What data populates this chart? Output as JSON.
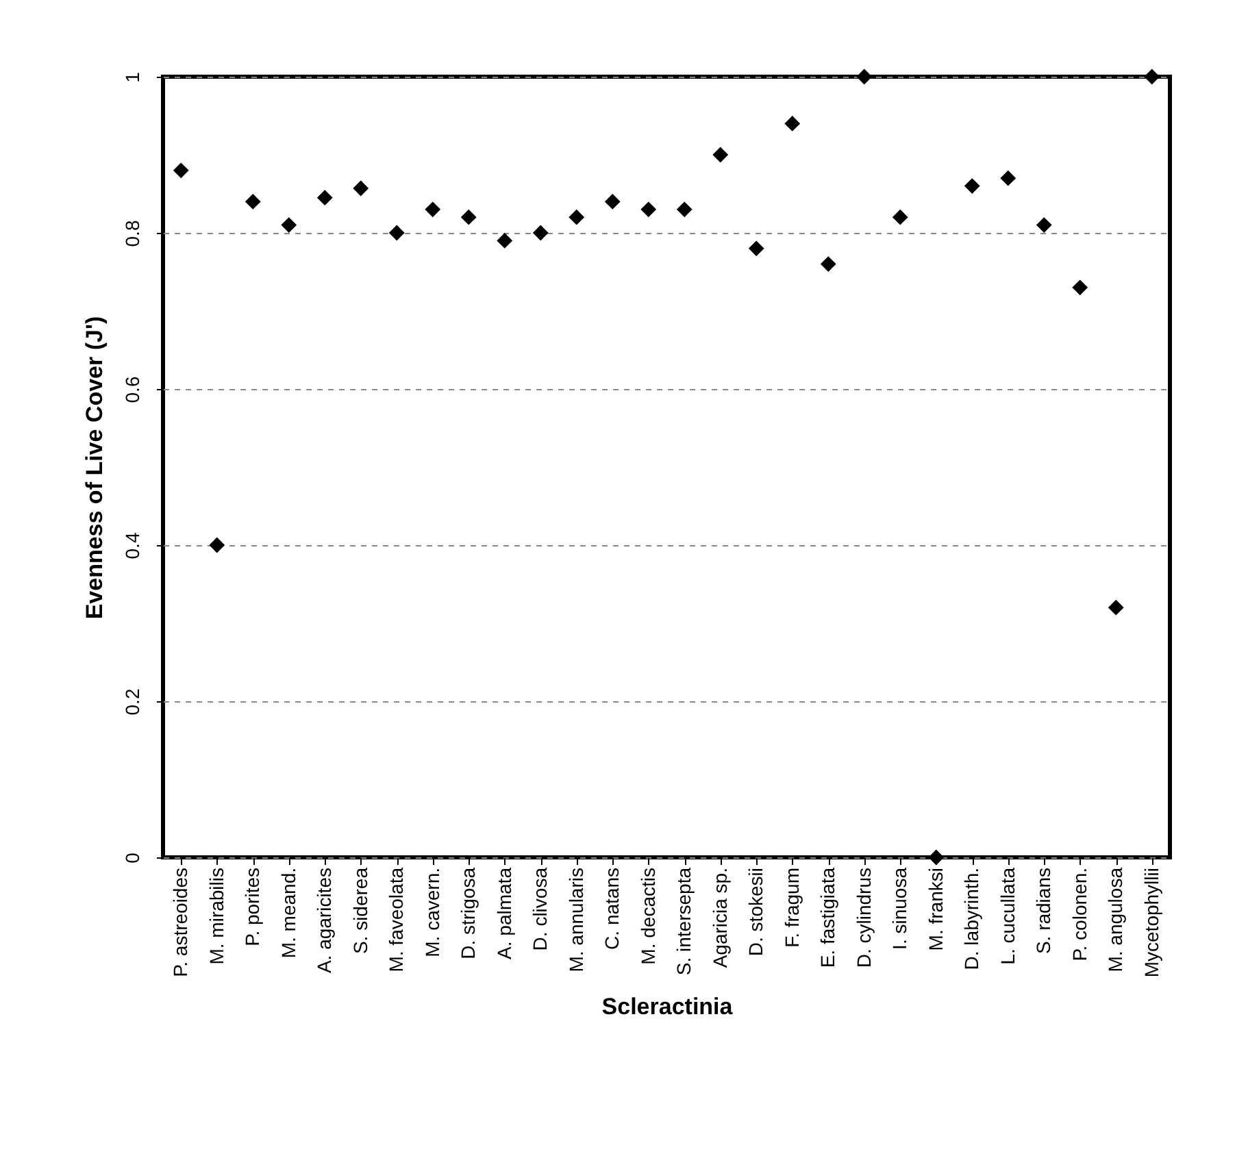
{
  "chart_data": {
    "type": "scatter",
    "xlabel": "Scleractinia",
    "ylabel": "Evenness of Live Cover (J')",
    "categories": [
      "P. astreoides",
      "M. mirabilis",
      "P. porites",
      "M. meand.",
      "A. agaricites",
      "S. siderea",
      "M. faveolata",
      "M. cavern.",
      "D. strigosa",
      "A. palmata",
      "D. clivosa",
      "M. annularis",
      "C. natans",
      "M. decactis",
      "S. intersepta",
      "Agaricia sp.",
      "D. stokesii",
      "F. fragum",
      "E. fastigiata",
      "D. cylindrus",
      "I. sinuosa",
      "M. franksi",
      "D. labyrinth.",
      "L. cucullata",
      "S. radians",
      "P. colonen.",
      "M. angulosa",
      "Mycetophyllii"
    ],
    "values": [
      0.88,
      0.4,
      0.84,
      0.81,
      0.845,
      0.857,
      0.8,
      0.83,
      0.82,
      0.79,
      0.8,
      0.82,
      0.84,
      0.83,
      0.83,
      0.9,
      0.78,
      0.94,
      0.76,
      1.0,
      0.82,
      0,
      0.86,
      0.87,
      0.81,
      0.73,
      0.32,
      1.0
    ],
    "color": "#000000",
    "marker": "diamond",
    "ylim": [
      0,
      1
    ],
    "yticks": [
      0,
      0.2,
      0.4,
      0.6,
      0.8,
      1
    ],
    "grid": "y"
  }
}
